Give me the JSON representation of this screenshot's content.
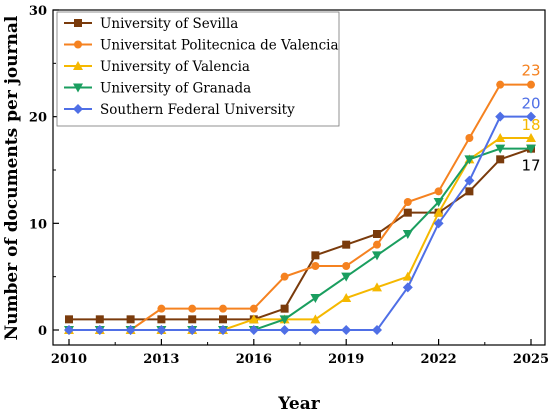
{
  "chart_data": {
    "type": "line",
    "xlabel": "Year",
    "ylabel": "Number of documents per journal",
    "xlim": [
      2010,
      2025
    ],
    "ylim": [
      0,
      30
    ],
    "x_ticks": [
      "2010",
      "2013",
      "2016",
      "2019",
      "2022",
      "2025"
    ],
    "y_ticks": [
      "0",
      "10",
      "20",
      "30"
    ],
    "grid": false,
    "legend_position": "top-left",
    "x": [
      2010,
      2011,
      2012,
      2013,
      2014,
      2015,
      2016,
      2017,
      2018,
      2019,
      2020,
      2021,
      2022,
      2023,
      2024,
      2025
    ],
    "series": [
      {
        "name": "University of Sevilla",
        "color": "#7a3b0c",
        "marker": "square",
        "values": [
          1,
          1,
          1,
          1,
          1,
          1,
          1,
          2,
          7,
          8,
          9,
          11,
          11,
          13,
          16,
          17
        ],
        "end_label": "17",
        "end_label_color": "#000000"
      },
      {
        "name": "Universitat Politecnica de Valencia",
        "color": "#f58220",
        "marker": "circle",
        "values": [
          0,
          0,
          0,
          2,
          2,
          2,
          2,
          5,
          6,
          6,
          8,
          12,
          13,
          18,
          23,
          23
        ],
        "end_label": "23",
        "end_label_color": "#f58220"
      },
      {
        "name": "University of Valencia",
        "color": "#f5b800",
        "marker": "triangle-up",
        "values": [
          0,
          0,
          0,
          0,
          0,
          0,
          1,
          1,
          1,
          3,
          4,
          5,
          11,
          16,
          18,
          18
        ],
        "end_label": "18",
        "end_label_color": "#f5b800"
      },
      {
        "name": "University of Granada",
        "color": "#1a9e5f",
        "marker": "triangle-down",
        "values": [
          0,
          0,
          0,
          0,
          0,
          0,
          0,
          1,
          3,
          5,
          7,
          9,
          12,
          16,
          17,
          17
        ],
        "end_label": "",
        "end_label_color": "#1a9e5f"
      },
      {
        "name": "Southern Federal University",
        "color": "#4f6fe6",
        "marker": "diamond",
        "values": [
          0,
          0,
          0,
          0,
          0,
          0,
          0,
          0,
          0,
          0,
          0,
          4,
          10,
          14,
          20,
          20
        ],
        "end_label": "20",
        "end_label_color": "#4f6fe6"
      }
    ]
  }
}
